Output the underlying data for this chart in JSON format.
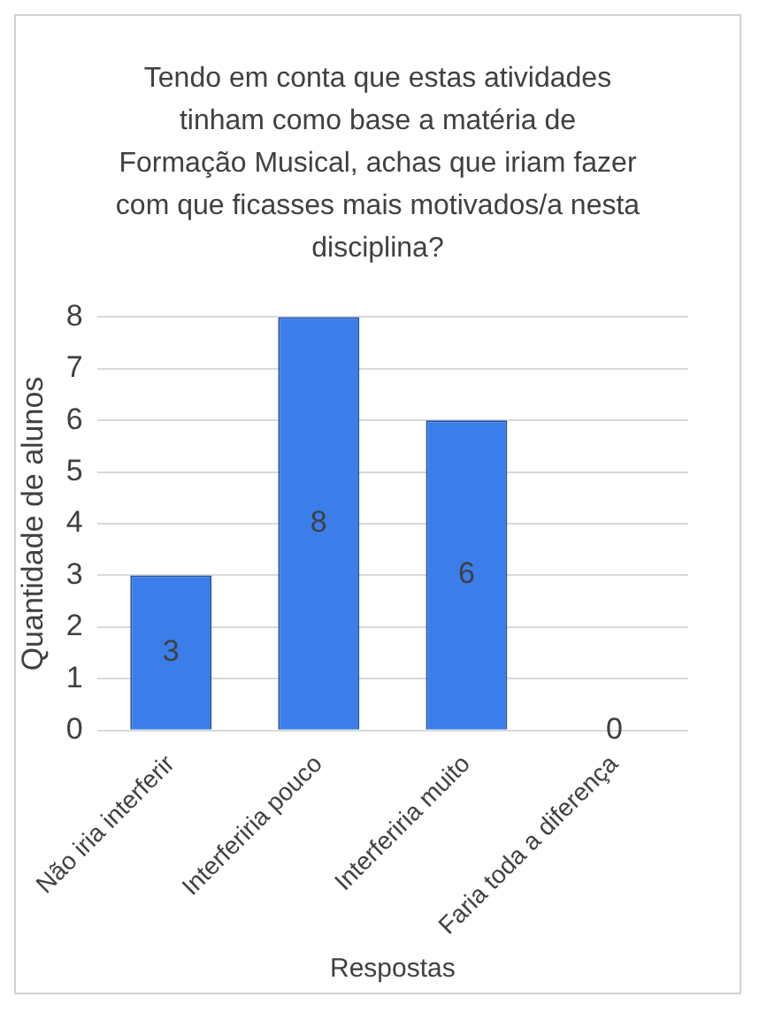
{
  "chart_data": {
    "type": "bar",
    "title": "Tendo em conta que estas atividades tinham como base a matéria de Formação Musical, achas que iriam fazer com que ficasses mais motivados/a nesta disciplina?",
    "xlabel": "Respostas",
    "ylabel": "Quantidade de alunos",
    "categories": [
      "Não iria interferir",
      "Interferiria pouco",
      "Interferiria muito",
      "Faria toda a diferença"
    ],
    "values": [
      3,
      8,
      6,
      0
    ],
    "color": "#3b7ee9",
    "ylim": [
      0,
      8
    ],
    "yticks": [
      0,
      1,
      2,
      3,
      4,
      5,
      6,
      7,
      8
    ],
    "grid": "y",
    "data_labels": true
  }
}
